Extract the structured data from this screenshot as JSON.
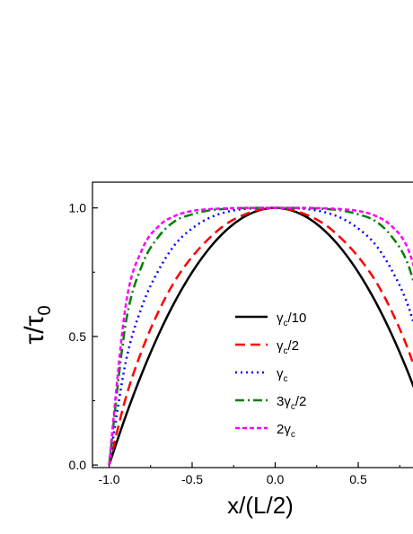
{
  "chart_data": {
    "type": "line",
    "xlabel": "x/(L/2)",
    "ylabel": {
      "main": "τ/τ",
      "sub": "0"
    },
    "xlim": [
      -1.1,
      0.9
    ],
    "ylim": [
      -0.01,
      1.1
    ],
    "x_ticks": [
      "-1.0",
      "-0.5",
      "0.0",
      "0.5"
    ],
    "x_tick_values": [
      -1.0,
      -0.5,
      0.0,
      0.5
    ],
    "y_ticks": [
      "0.0",
      "0.5",
      "1.0"
    ],
    "y_tick_values": [
      0.0,
      0.5,
      1.0
    ],
    "grid": false,
    "legend_position": "center-right",
    "x": [
      -1.0,
      -0.9,
      -0.8,
      -0.7,
      -0.6,
      -0.5,
      -0.4,
      -0.3,
      -0.2,
      -0.1,
      0.0,
      0.1,
      0.2,
      0.3,
      0.4,
      0.5,
      0.6,
      0.7,
      0.8,
      0.9
    ],
    "series": [
      {
        "name": "γc/10",
        "label": {
          "base": "γ",
          "sub": "c",
          "suffix": "/10",
          "prefix": ""
        },
        "color": "#000000",
        "dash": "",
        "width": 2.5,
        "values": [
          0.0,
          0.19,
          0.36,
          0.51,
          0.64,
          0.75,
          0.84,
          0.91,
          0.96,
          0.99,
          1.0,
          0.99,
          0.96,
          0.91,
          0.84,
          0.75,
          0.64,
          0.51,
          0.36,
          0.19
        ]
      },
      {
        "name": "γc/2",
        "label": {
          "base": "γ",
          "sub": "c",
          "suffix": "/2",
          "prefix": ""
        },
        "color": "#ff0000",
        "dash": "11,6",
        "width": 2.5,
        "values": [
          0.0,
          0.26,
          0.45,
          0.6,
          0.72,
          0.81,
          0.88,
          0.935,
          0.97,
          0.992,
          1.0,
          0.992,
          0.97,
          0.935,
          0.88,
          0.81,
          0.72,
          0.6,
          0.45,
          0.26
        ]
      },
      {
        "name": "γc",
        "label": {
          "base": "γ",
          "sub": "c",
          "suffix": "",
          "prefix": ""
        },
        "color": "#0000ff",
        "dash": "2,4",
        "width": 2.5,
        "values": [
          0.0,
          0.4,
          0.62,
          0.76,
          0.86,
          0.92,
          0.96,
          0.983,
          0.995,
          0.999,
          1.0,
          0.999,
          0.995,
          0.983,
          0.96,
          0.92,
          0.86,
          0.76,
          0.62,
          0.4
        ]
      },
      {
        "name": "3γc/2",
        "label": {
          "base": "γ",
          "sub": "c",
          "suffix": "/2",
          "prefix": "3"
        },
        "color": "#008000",
        "dash": "10,4,2,4",
        "width": 2.5,
        "values": [
          0.0,
          0.55,
          0.78,
          0.89,
          0.95,
          0.975,
          0.99,
          0.996,
          0.999,
          1.0,
          1.0,
          1.0,
          0.999,
          0.996,
          0.99,
          0.975,
          0.95,
          0.89,
          0.78,
          0.55
        ]
      },
      {
        "name": "2γc",
        "label": {
          "base": "γ",
          "sub": "c",
          "suffix": "",
          "prefix": "2"
        },
        "color": "#ff00ff",
        "dash": "5,3",
        "width": 2.5,
        "values": [
          0.0,
          0.62,
          0.84,
          0.93,
          0.97,
          0.988,
          0.995,
          0.998,
          1.0,
          1.0,
          1.0,
          1.0,
          1.0,
          0.998,
          0.995,
          0.988,
          0.97,
          0.93,
          0.84,
          0.62
        ]
      }
    ]
  }
}
